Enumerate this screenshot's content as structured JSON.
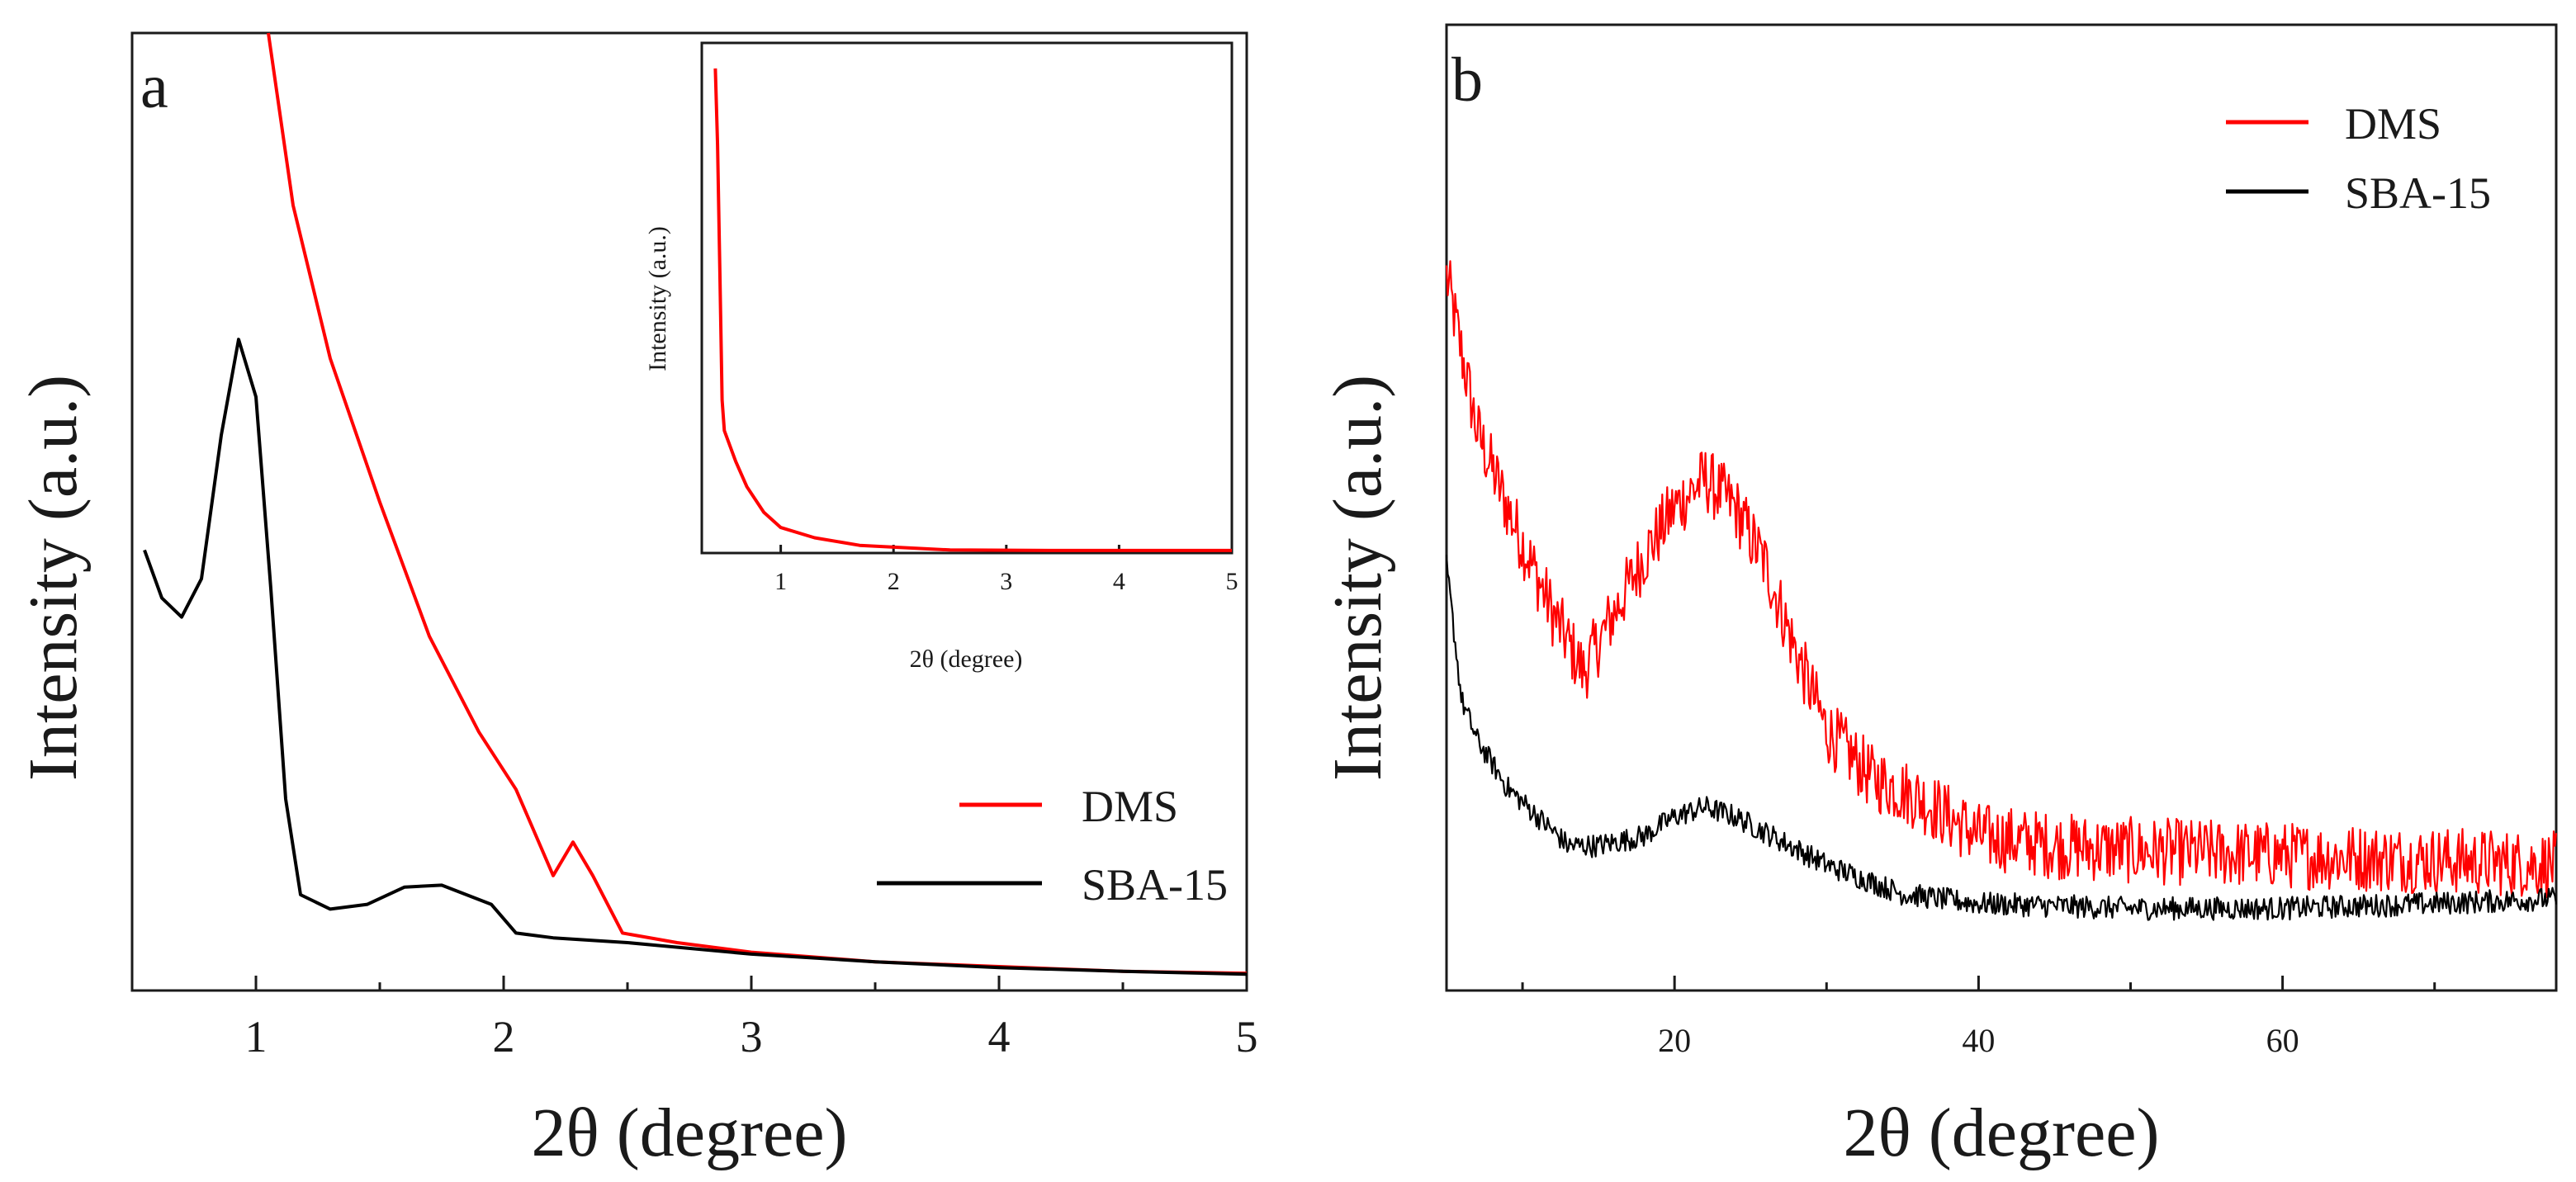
{
  "chart_data": [
    {
      "id": "a",
      "type": "line",
      "panel_label": "a",
      "title": "",
      "xlabel": "2θ (degree)",
      "ylabel": "Intensity (a.u.)",
      "xlim": [
        0.5,
        5
      ],
      "ylim": [
        0,
        1
      ],
      "x_ticks": [
        1,
        2,
        3,
        4,
        5
      ],
      "y_ticks": [],
      "grid": false,
      "legend": {
        "position": "bottom-right",
        "entries": [
          "DMS",
          "SBA-15"
        ]
      },
      "series": [
        {
          "name": "DMS",
          "color": "#ff0000",
          "points": [
            [
              1.05,
              1.0
            ],
            [
              1.15,
              0.82
            ],
            [
              1.3,
              0.66
            ],
            [
              1.5,
              0.51
            ],
            [
              1.7,
              0.37
            ],
            [
              1.9,
              0.27
            ],
            [
              2.05,
              0.21
            ],
            [
              2.2,
              0.12
            ],
            [
              2.28,
              0.155
            ],
            [
              2.36,
              0.12
            ],
            [
              2.48,
              0.06
            ],
            [
              2.7,
              0.05
            ],
            [
              3.0,
              0.04
            ],
            [
              3.5,
              0.03
            ],
            [
              4.0,
              0.025
            ],
            [
              4.5,
              0.02
            ],
            [
              5.0,
              0.018
            ]
          ]
        },
        {
          "name": "SBA-15",
          "color": "#000000",
          "points": [
            [
              0.55,
              0.46
            ],
            [
              0.62,
              0.41
            ],
            [
              0.7,
              0.39
            ],
            [
              0.78,
              0.43
            ],
            [
              0.86,
              0.58
            ],
            [
              0.93,
              0.68
            ],
            [
              1.0,
              0.62
            ],
            [
              1.06,
              0.42
            ],
            [
              1.12,
              0.2
            ],
            [
              1.18,
              0.1
            ],
            [
              1.3,
              0.085
            ],
            [
              1.45,
              0.09
            ],
            [
              1.6,
              0.108
            ],
            [
              1.75,
              0.11
            ],
            [
              1.95,
              0.09
            ],
            [
              2.05,
              0.06
            ],
            [
              2.2,
              0.055
            ],
            [
              2.5,
              0.05
            ],
            [
              3.0,
              0.038
            ],
            [
              3.5,
              0.03
            ],
            [
              4.0,
              0.024
            ],
            [
              4.5,
              0.02
            ],
            [
              5.0,
              0.017
            ]
          ]
        }
      ]
    },
    {
      "id": "a-inset",
      "type": "line",
      "title": "",
      "xlabel": "2θ (degree)",
      "ylabel": "Intensity (a.u.)",
      "xlim": [
        0.3,
        5
      ],
      "ylim": [
        0,
        1
      ],
      "x_ticks": [
        1,
        2,
        3,
        4,
        5
      ],
      "y_ticks": [],
      "grid": false,
      "series": [
        {
          "name": "DMS",
          "color": "#ff0000",
          "points": [
            [
              0.42,
              0.95
            ],
            [
              0.44,
              0.8
            ],
            [
              0.46,
              0.55
            ],
            [
              0.48,
              0.3
            ],
            [
              0.5,
              0.24
            ],
            [
              0.6,
              0.18
            ],
            [
              0.7,
              0.13
            ],
            [
              0.85,
              0.08
            ],
            [
              1.0,
              0.05
            ],
            [
              1.3,
              0.03
            ],
            [
              1.7,
              0.015
            ],
            [
              2.5,
              0.006
            ],
            [
              3.5,
              0.005
            ],
            [
              5.0,
              0.005
            ]
          ]
        }
      ]
    },
    {
      "id": "b",
      "type": "line",
      "panel_label": "b",
      "title": "",
      "xlabel": "2θ (degree)",
      "ylabel": "Intensity (a.u.)",
      "xlim": [
        5,
        78
      ],
      "ylim": [
        0,
        1
      ],
      "x_ticks": [
        20,
        40,
        60
      ],
      "y_ticks": [],
      "grid": false,
      "legend": {
        "position": "top-right",
        "entries": [
          "DMS",
          "SBA-15"
        ]
      },
      "series": [
        {
          "name": "DMS",
          "color": "#ff0000",
          "noise": 0.035,
          "points": [
            [
              5,
              0.74
            ],
            [
              7,
              0.58
            ],
            [
              9,
              0.5
            ],
            [
              12,
              0.39
            ],
            [
              14,
              0.33
            ],
            [
              16,
              0.39
            ],
            [
              18,
              0.45
            ],
            [
              20,
              0.5
            ],
            [
              22,
              0.53
            ],
            [
              24,
              0.5
            ],
            [
              26,
              0.44
            ],
            [
              28,
              0.35
            ],
            [
              30,
              0.27
            ],
            [
              33,
              0.22
            ],
            [
              36,
              0.2
            ],
            [
              40,
              0.16
            ],
            [
              45,
              0.15
            ],
            [
              50,
              0.145
            ],
            [
              60,
              0.14
            ],
            [
              70,
              0.135
            ],
            [
              78,
              0.13
            ]
          ]
        },
        {
          "name": "SBA-15",
          "color": "#000000",
          "noise": 0.012,
          "points": [
            [
              5,
              0.44
            ],
            [
              6,
              0.3
            ],
            [
              7,
              0.26
            ],
            [
              9,
              0.21
            ],
            [
              11,
              0.18
            ],
            [
              13,
              0.15
            ],
            [
              15,
              0.15
            ],
            [
              18,
              0.16
            ],
            [
              20,
              0.18
            ],
            [
              22,
              0.19
            ],
            [
              24,
              0.18
            ],
            [
              27,
              0.155
            ],
            [
              30,
              0.13
            ],
            [
              35,
              0.1
            ],
            [
              40,
              0.09
            ],
            [
              50,
              0.085
            ],
            [
              60,
              0.085
            ],
            [
              70,
              0.09
            ],
            [
              78,
              0.095
            ]
          ]
        }
      ]
    }
  ]
}
